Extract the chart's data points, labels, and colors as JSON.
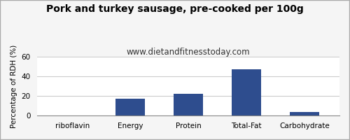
{
  "title": "Pork and turkey sausage, pre-cooked per 100g",
  "subtitle": "www.dietandfitnesstoday.com",
  "categories": [
    "riboflavin",
    "Energy",
    "Protein",
    "Total-Fat",
    "Carbohydrate"
  ],
  "values": [
    0,
    17,
    22,
    47,
    4
  ],
  "bar_color": "#2e4d8e",
  "ylabel": "Percentage of RDH (%)",
  "ylim": [
    0,
    60
  ],
  "yticks": [
    0,
    20,
    40,
    60
  ],
  "background_color": "#f5f5f5",
  "plot_bg_color": "#ffffff",
  "title_fontsize": 10,
  "subtitle_fontsize": 8.5,
  "label_fontsize": 7.5,
  "tick_fontsize": 7.5,
  "grid_color": "#cccccc"
}
